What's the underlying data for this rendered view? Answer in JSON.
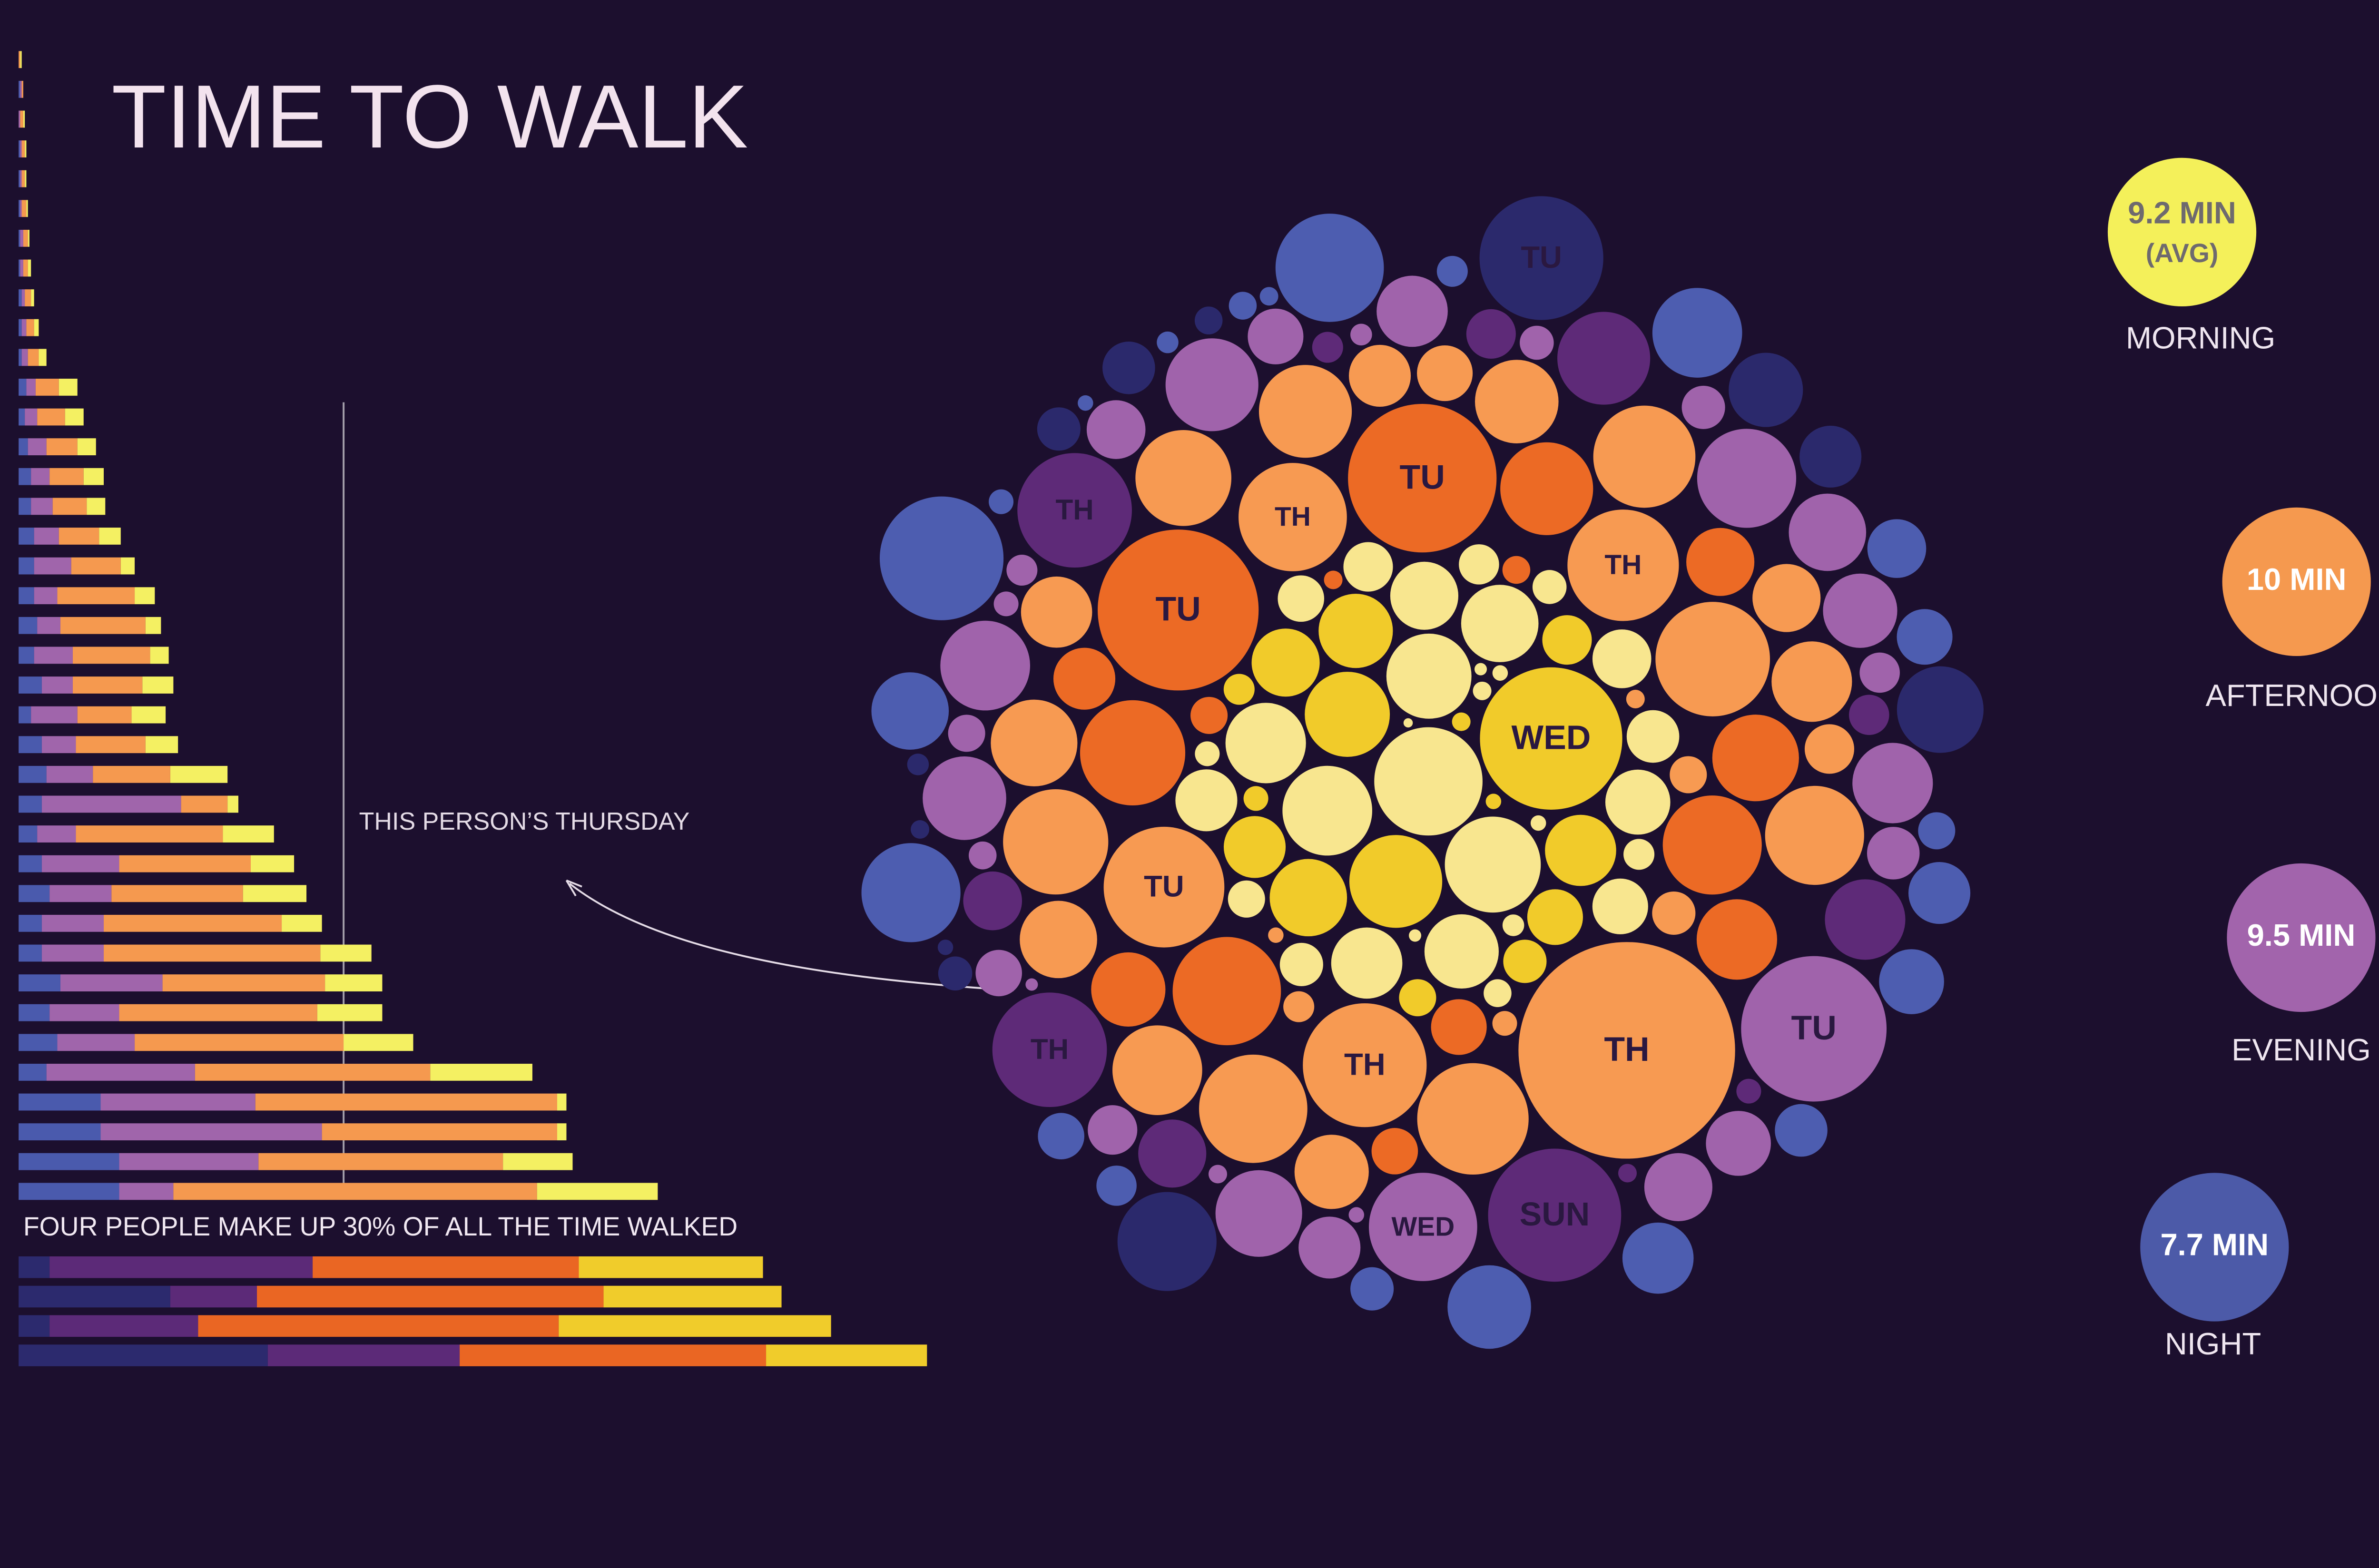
{
  "title": "TIME TO WALK",
  "chart_data": [
    {
      "type": "bar",
      "orientation": "horizontal",
      "stacked": true,
      "xlim": [
        0,
        600
      ],
      "annotation": "THIS PERSON’S THURSDAY",
      "series": [
        {
          "color": "#4a5aad",
          "values": [
            0,
            1,
            0,
            1,
            1,
            1,
            1,
            1,
            2,
            2,
            2,
            5,
            4,
            6,
            8,
            8,
            10,
            10,
            10,
            12,
            10,
            15,
            8,
            15,
            18,
            15,
            12,
            15,
            20,
            15,
            15,
            27,
            20,
            25,
            18,
            53,
            53,
            65,
            65
          ]
        },
        {
          "color": "#a065ab",
          "values": [
            0,
            1,
            1,
            1,
            1,
            1,
            2,
            2,
            2,
            3,
            4,
            6,
            8,
            12,
            12,
            14,
            16,
            24,
            15,
            15,
            25,
            20,
            30,
            22,
            30,
            90,
            25,
            50,
            40,
            40,
            40,
            66,
            45,
            50,
            96,
            100,
            143,
            90,
            35
          ]
        },
        {
          "color": "#f5994f",
          "values": [
            1,
            1,
            2,
            2,
            2,
            3,
            3,
            3,
            4,
            5,
            7,
            15,
            18,
            20,
            22,
            22,
            26,
            32,
            50,
            55,
            50,
            45,
            35,
            45,
            50,
            30,
            95,
            85,
            85,
            115,
            140,
            105,
            128,
            135,
            152,
            195,
            152,
            158,
            235
          ]
        },
        {
          "color": "#f4f062",
          "values": [
            1,
            0,
            1,
            1,
            1,
            1,
            1,
            2,
            2,
            3,
            5,
            12,
            12,
            12,
            13,
            12,
            14,
            9,
            13,
            10,
            12,
            20,
            22,
            21,
            37,
            7,
            33,
            28,
            41,
            26,
            33,
            37,
            42,
            45,
            66,
            6,
            6,
            45,
            78
          ]
        }
      ]
    },
    {
      "type": "bar",
      "orientation": "horizontal",
      "stacked": true,
      "xlim": [
        0,
        600
      ],
      "annotation": "FOUR PEOPLE MAKE UP 30% OF ALL THE TIME WALKED",
      "series": [
        {
          "color": "#2c2a6e",
          "values": [
            20,
            98,
            20,
            161
          ]
        },
        {
          "color": "#5c2a78",
          "values": [
            170,
            56,
            96,
            124
          ]
        },
        {
          "color": "#ea6623",
          "values": [
            172,
            224,
            233,
            198
          ]
        },
        {
          "color": "#f0cc2b",
          "values": [
            119,
            115,
            176,
            104
          ]
        }
      ]
    },
    {
      "type": "bubble",
      "series": [
        {
          "color": "#f8e68f",
          "values": [
            70,
            62,
            58,
            55,
            52,
            50,
            48,
            46,
            44,
            42,
            40,
            38,
            36,
            34,
            32,
            30,
            28,
            26,
            24,
            22,
            20,
            18,
            16,
            14,
            12,
            10,
            10,
            8,
            8,
            6
          ]
        },
        {
          "color": "#f1cb2a",
          "values": [
            92,
            60,
            55,
            50,
            48,
            46,
            44,
            40,
            36,
            32,
            28,
            24,
            20,
            16,
            12,
            10
          ],
          "labels": [
            "WED",
            null,
            null,
            null,
            null,
            null,
            null,
            null,
            null,
            null,
            null,
            null,
            null,
            null,
            null,
            null
          ]
        },
        {
          "color": "#f79a52",
          "values": [
            140,
            80,
            78,
            72,
            70,
            74,
            72,
            70,
            68,
            66,
            64,
            62,
            60,
            58,
            56,
            54,
            52,
            50,
            48,
            46,
            44,
            40,
            36,
            32,
            28,
            24,
            20,
            16,
            12,
            10
          ],
          "labels": [
            "TH",
            "TH",
            "TU",
            "TH",
            "TH",
            null,
            null,
            null,
            null,
            null,
            null,
            null,
            null,
            null,
            null,
            null,
            null,
            null,
            null,
            null,
            null,
            null,
            null,
            null,
            null,
            null,
            null,
            null,
            null,
            null
          ]
        },
        {
          "color": "#ec6a25",
          "values": [
            104,
            96,
            70,
            68,
            64,
            60,
            56,
            52,
            48,
            44,
            40,
            36,
            30,
            24,
            18,
            12
          ],
          "labels": [
            "TU",
            "TU",
            null,
            null,
            null,
            null,
            null,
            null,
            null,
            null,
            null,
            null,
            null,
            null,
            null,
            null
          ]
        },
        {
          "color": "#a063ab",
          "values": [
            94,
            70,
            64,
            60,
            58,
            56,
            54,
            52,
            50,
            48,
            46,
            44,
            42,
            40,
            38,
            36,
            34,
            32,
            30,
            28,
            26,
            24,
            22,
            20,
            18,
            16,
            14,
            12,
            10,
            8
          ],
          "labels": [
            "TU",
            "WED",
            null,
            null,
            null,
            null,
            null,
            null,
            null,
            null,
            null,
            null,
            null,
            null,
            null,
            null,
            null,
            null,
            null,
            null,
            null,
            null,
            null,
            null,
            null,
            null,
            null,
            null,
            null,
            null
          ]
        },
        {
          "color": "#5e2a78",
          "values": [
            86,
            74,
            74,
            60,
            52,
            44,
            38,
            32,
            26,
            20,
            16,
            12
          ],
          "labels": [
            "SUN",
            "TH",
            "TH",
            null,
            null,
            null,
            null,
            null,
            null,
            null,
            null,
            null
          ]
        },
        {
          "color": "#4d5db0",
          "values": [
            80,
            70,
            64,
            58,
            54,
            50,
            46,
            42,
            40,
            38,
            36,
            34,
            30,
            28,
            26,
            24,
            20,
            18,
            16,
            14,
            12,
            10
          ]
        },
        {
          "color": "#2b296c",
          "values": [
            80,
            64,
            56,
            48,
            40,
            34,
            28,
            22,
            18,
            14,
            12,
            10
          ],
          "labels": [
            "TU",
            null,
            null,
            null,
            null,
            null,
            null,
            null,
            null,
            null,
            null,
            null
          ]
        }
      ],
      "legend": [
        {
          "value_label": "9.2 MIN",
          "note": "(AVG)",
          "name": "MORNING",
          "color": "#f4f05a",
          "text_color": "#6e6a6e"
        },
        {
          "value_label": "10 MIN",
          "name": "AFTERNOON",
          "color": "#f5994f",
          "text_color": "#ffffff"
        },
        {
          "value_label": "9.5 MIN",
          "name": "EVENING",
          "color": "#a264ac",
          "text_color": "#ffffff"
        },
        {
          "value_label": "7.7 MIN",
          "name": "NIGHT",
          "color": "#4c5aa8",
          "text_color": "#ffffff"
        }
      ]
    }
  ]
}
